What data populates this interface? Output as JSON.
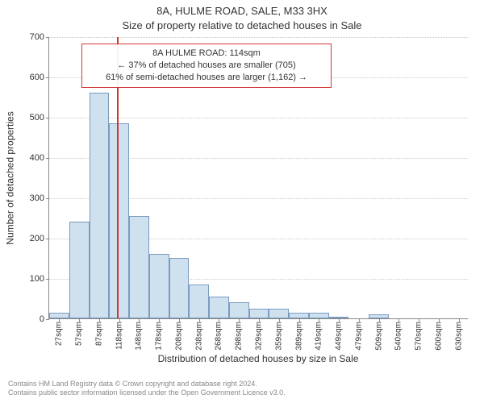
{
  "titles": {
    "line1": "8A, HULME ROAD, SALE, M33 3HX",
    "line2": "Size of property relative to detached houses in Sale"
  },
  "chart": {
    "type": "histogram",
    "background_color": "#ffffff",
    "grid_color": "#c8c8c8",
    "axis_color": "#888888",
    "ylim": [
      0,
      700
    ],
    "ytick_step": 100,
    "yticks": [
      0,
      100,
      200,
      300,
      400,
      500,
      600,
      700
    ],
    "ylabel": "Number of detached properties",
    "xlabel": "Distribution of detached houses by size in Sale",
    "categories": [
      "27sqm",
      "57sqm",
      "87sqm",
      "118sqm",
      "148sqm",
      "178sqm",
      "208sqm",
      "238sqm",
      "268sqm",
      "298sqm",
      "329sqm",
      "359sqm",
      "389sqm",
      "419sqm",
      "449sqm",
      "479sqm",
      "509sqm",
      "540sqm",
      "570sqm",
      "600sqm",
      "630sqm"
    ],
    "values": [
      15,
      240,
      560,
      485,
      255,
      160,
      150,
      85,
      55,
      40,
      25,
      25,
      15,
      15,
      5,
      0,
      10,
      0,
      0,
      0,
      0
    ],
    "bar_fill": "#cfe0ef",
    "bar_stroke": "#7a9cc0",
    "bar_width_ratio": 1.0,
    "annotation": {
      "line1": "8A HULME ROAD: 114sqm",
      "line2": "← 37% of detached houses are smaller (705)",
      "line3": "61% of semi-detached houses are larger (1,162) →",
      "border_color": "#d33333",
      "x_value_sqm": 114,
      "vline_color": "#d33333"
    }
  },
  "footer": {
    "line1": "Contains HM Land Registry data © Crown copyright and database right 2024.",
    "line2": "Contains public sector information licensed under the Open Government Licence v3.0."
  }
}
